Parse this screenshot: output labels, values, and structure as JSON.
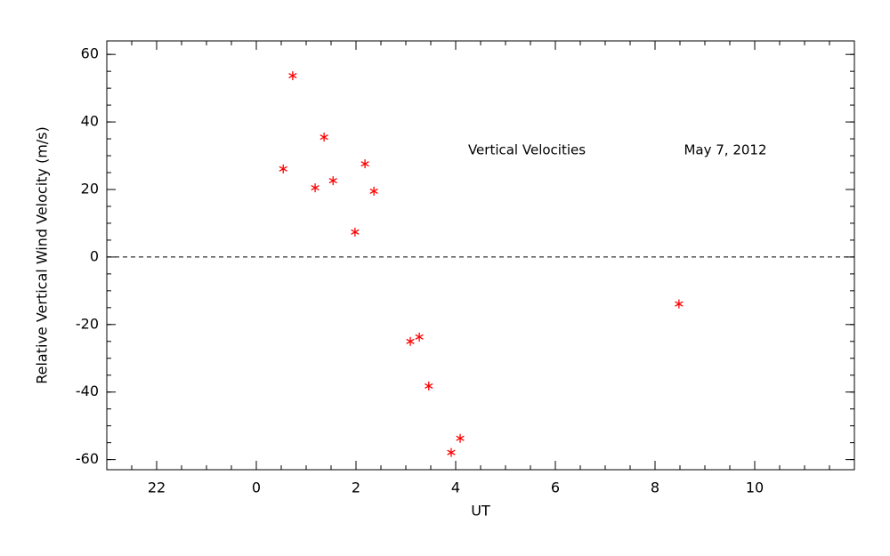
{
  "chart_data": {
    "type": "scatter",
    "xlabel": "UT",
    "ylabel": "Relative Vertical Wind Velocity (m/s)",
    "annotations": [
      "Vertical Velocities",
      "May 7, 2012"
    ],
    "series": [
      {
        "color": "#ff0000",
        "x": [
          0.54,
          0.73,
          1.18,
          1.36,
          1.54,
          1.98,
          2.18,
          2.36,
          3.09,
          3.27,
          3.46,
          3.91,
          4.09,
          8.48
        ],
        "values": [
          26.1,
          53.7,
          20.5,
          35.5,
          22.6,
          7.4,
          27.6,
          19.5,
          -25.0,
          -23.7,
          -38.2,
          -57.9,
          -53.7,
          -13.9
        ]
      }
    ],
    "xlim": [
      -3,
      12
    ],
    "xticks": [
      {
        "value": -2,
        "label": "22"
      },
      0,
      2,
      4,
      6,
      8,
      10
    ],
    "ylim": [
      -63,
      64
    ],
    "yticks": [
      -60,
      -40,
      -20,
      0,
      20,
      40,
      60
    ],
    "minor_ticks": 4,
    "zero_line": true
  }
}
